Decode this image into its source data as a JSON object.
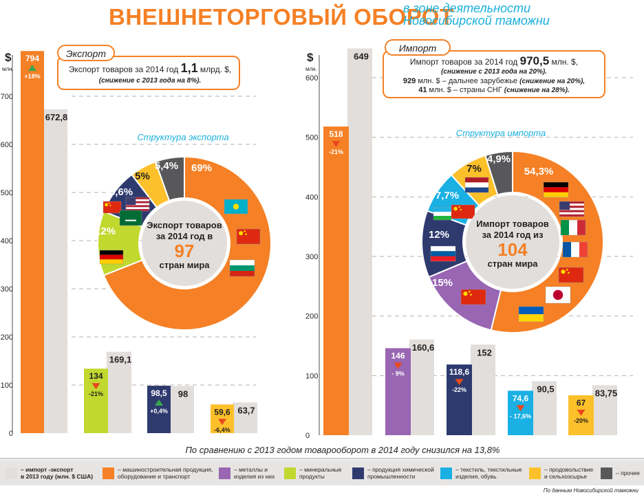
{
  "title": "ВНЕШНЕТОРГОВЫЙ ОБОРОТ",
  "subtitle": [
    "в зоне деятельности",
    "Новосибирской таможни"
  ],
  "colors": {
    "accent": "#f58025",
    "machinery": "#f58025",
    "metals": "#9966b3",
    "minerals": "#c1d82f",
    "chemicals": "#2e3a6e",
    "textiles": "#1ab0e4",
    "food": "#fcc02b",
    "other": "#58585a",
    "prev_year": "#e1dedb",
    "arrow_down": "#e8491d",
    "arrow_up": "#3aa64b",
    "pie_caption": "#1ab0dc"
  },
  "export": {
    "currency": "$",
    "unit": "млн.",
    "box_title": "Экспорт",
    "box_line1": [
      "Экспорт товаров за 2014 год ",
      "1,1",
      " млрд. $,"
    ],
    "box_line2": "(снижение с 2013 года на 8%).",
    "pie_caption": "Структура экспорта",
    "pie_center": [
      "Экспорт товаров",
      "за 2014 год в",
      "97",
      "стран мира"
    ]
  },
  "import": {
    "currency": "$",
    "unit": "млн.",
    "box_title": "Импорт",
    "box_line1": [
      "Импорт товаров за 2014 год ",
      "970,5",
      " млн. $,"
    ],
    "box_line2": "(снижение с 2013 года на 20%).",
    "box_line3": [
      "929",
      " млн. $ – дальнее зарубежье ",
      "(снижение на 20%),"
    ],
    "box_line4": [
      "41",
      " млн. $ – страны СНГ ",
      "(снижение на 28%)."
    ],
    "pie_caption": "Структура импорта",
    "pie_center": [
      "Импорт товаров",
      "за 2014 год из",
      "104",
      "стран мира"
    ]
  },
  "footnote": "По сравнению с 2013 годом товарооборот в 2014 году снизился на 13,8%",
  "source": "По данным Новосибирской таможни",
  "legend": [
    {
      "key": "prev_year",
      "label": [
        "– импорт -экспорт",
        "в 2013 году (млн. $ США)"
      ],
      "bold": true
    },
    {
      "key": "machinery",
      "label": [
        "– машиностроительная продукция,",
        "оборудование и транспорт"
      ]
    },
    {
      "key": "metals",
      "label": [
        "– металлы и",
        "изделия из них"
      ]
    },
    {
      "key": "minerals",
      "label": [
        "– минеральные",
        "продукты"
      ]
    },
    {
      "key": "chemicals",
      "label": [
        "– продукция химической",
        "промышленности"
      ]
    },
    {
      "key": "textiles",
      "label": [
        "– текстиль, текстильные",
        "изделия, обувь"
      ]
    },
    {
      "key": "food",
      "label": [
        "– продовольствие",
        "и сельхозсырье"
      ]
    },
    {
      "key": "other",
      "label": [
        "– прочее"
      ]
    }
  ],
  "chart_data": [
    {
      "type": "bar",
      "title": "Экспорт",
      "ylabel": "$ млн.",
      "ylim": [
        0,
        750
      ],
      "yticks": [
        0,
        100,
        200,
        300,
        400,
        500,
        600,
        700
      ],
      "grid": true,
      "categories": [
        "машиностроительная продукция, оборудование и транспорт",
        "минеральные продукты",
        "продукция химической промышленности",
        "продовольствие и сельхозсырье"
      ],
      "series": [
        {
          "name": "2014",
          "values": [
            794,
            134,
            98.5,
            59.6
          ],
          "labels": [
            "794",
            "134",
            "98,5",
            "59,6"
          ],
          "colors": [
            "machinery",
            "minerals",
            "chemicals",
            "food"
          ]
        },
        {
          "name": "2013",
          "values": [
            672.8,
            169.1,
            98,
            63.7
          ],
          "labels": [
            "672,8",
            "169,1",
            "98",
            "63,7"
          ]
        }
      ],
      "changes": [
        {
          "label": "+18%",
          "direction": "up"
        },
        {
          "label": "-21%",
          "direction": "down"
        },
        {
          "label": "+0,4%",
          "direction": "up"
        },
        {
          "label": "-6,4%",
          "direction": "down"
        }
      ]
    },
    {
      "type": "bar",
      "title": "Импорт",
      "ylabel": "$ млн.",
      "ylim": [
        0,
        650
      ],
      "yticks": [
        0,
        100,
        200,
        300,
        400,
        500,
        600
      ],
      "grid": true,
      "categories": [
        "машиностроительная продукция, оборудование и транспорт",
        "металлы и изделия из них",
        "продукция химической промышленности",
        "текстиль, текстильные изделия, обувь",
        "продовольствие и сельхозсырье"
      ],
      "series": [
        {
          "name": "2014",
          "values": [
            518,
            146,
            118.6,
            74.6,
            67
          ],
          "labels": [
            "518",
            "146",
            "118,6",
            "74,6",
            "67"
          ],
          "colors": [
            "machinery",
            "metals",
            "chemicals",
            "textiles",
            "food"
          ]
        },
        {
          "name": "2013",
          "values": [
            649,
            160.6,
            152,
            90.5,
            83.75
          ],
          "labels": [
            "649",
            "160,6",
            "152",
            "90,5",
            "83,75"
          ]
        }
      ],
      "changes": [
        {
          "label": "-21%",
          "direction": "down"
        },
        {
          "label": "- 9%",
          "direction": "down"
        },
        {
          "label": "-22%",
          "direction": "down"
        },
        {
          "label": "- 17,6%",
          "direction": "down"
        },
        {
          "label": "-20%",
          "direction": "down"
        }
      ]
    },
    {
      "type": "pie",
      "title": "Структура экспорта",
      "categories": [
        "машиностроительная продукция, оборудование и транспорт",
        "минеральные продукты",
        "продукция химической промышленности",
        "продовольствие и сельхозсырье",
        "прочее"
      ],
      "values": [
        69,
        12,
        8.6,
        5,
        5.4
      ],
      "labels": [
        "69%",
        "12%",
        "8,6%",
        "5%",
        "5,4%"
      ],
      "colors": [
        "machinery",
        "minerals",
        "chemicals",
        "food",
        "other"
      ],
      "flags": [
        [
          "kazakhstan",
          "china",
          "bulgaria"
        ],
        [
          "germany"
        ],
        [
          "china",
          "usa",
          "saudi_arabia"
        ],
        [],
        []
      ]
    },
    {
      "type": "pie",
      "title": "Структура импорта",
      "categories": [
        "машиностроительная продукция, оборудование и транспорт",
        "металлы и изделия из них",
        "продукция химической промышленности",
        "текстиль, текстильные изделия, обувь",
        "продовольствие и сельхозсырье",
        "прочее"
      ],
      "values": [
        54.3,
        15,
        12,
        7.7,
        7,
        4.9
      ],
      "labels": [
        "54,3%",
        "15%",
        "12%",
        "7,7%",
        "7%",
        "4,9%"
      ],
      "colors": [
        "machinery",
        "metals",
        "chemicals",
        "textiles",
        "food",
        "other"
      ],
      "flags": [
        [
          "germany",
          "usa",
          "italy",
          "france",
          "china",
          "japan",
          "ukraine"
        ],
        [
          "china"
        ],
        [
          "slovenia"
        ],
        [
          "uzbekistan",
          "china"
        ],
        [
          "netherlands"
        ],
        []
      ]
    }
  ]
}
